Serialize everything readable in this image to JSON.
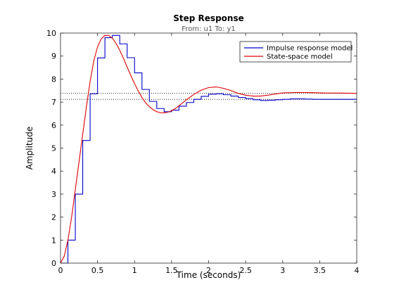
{
  "chart_data": {
    "type": "line",
    "title": "Step Response",
    "subtitle": "From: u1  To: y1",
    "xlabel": "Time (seconds)",
    "ylabel": "Amplitude",
    "xlim": [
      0,
      4
    ],
    "ylim": [
      0,
      10
    ],
    "xticks": [
      0,
      0.5,
      1,
      1.5,
      2,
      2.5,
      3,
      3.5,
      4
    ],
    "xtick_labels": [
      "0",
      "0.5",
      "1",
      "1.5",
      "2",
      "2.5",
      "3",
      "3.5",
      "4"
    ],
    "yticks": [
      0,
      1,
      2,
      3,
      4,
      5,
      6,
      7,
      8,
      9,
      10
    ],
    "ytick_labels": [
      "0",
      "1",
      "2",
      "3",
      "4",
      "5",
      "6",
      "7",
      "8",
      "9",
      "10"
    ],
    "grid": false,
    "legend_position": "top-right",
    "reference_lines": [
      {
        "y": 7.12,
        "style": "dotted"
      },
      {
        "y": 7.38,
        "style": "dotted"
      }
    ],
    "series": [
      {
        "name": "Impulse response model",
        "color": "#0000cc",
        "style": "stairs",
        "x": [
          0,
          0.1,
          0.2,
          0.3,
          0.4,
          0.5,
          0.6,
          0.7,
          0.8,
          0.9,
          1.0,
          1.1,
          1.2,
          1.3,
          1.4,
          1.5,
          1.6,
          1.7,
          1.8,
          1.9,
          2.0,
          2.1,
          2.2,
          2.3,
          2.4,
          2.5,
          2.6,
          2.7,
          2.8,
          2.9,
          3.0,
          3.1,
          3.2,
          3.3,
          3.4,
          3.5,
          3.6,
          3.7,
          3.8,
          3.9,
          4.0
        ],
        "y": [
          0,
          1.0,
          3.0,
          5.33,
          7.36,
          8.92,
          9.8,
          9.9,
          9.53,
          8.93,
          8.27,
          7.55,
          7.03,
          6.72,
          6.58,
          6.65,
          6.82,
          6.98,
          7.12,
          7.25,
          7.34,
          7.36,
          7.32,
          7.26,
          7.2,
          7.15,
          7.1,
          7.07,
          7.08,
          7.1,
          7.12,
          7.14,
          7.14,
          7.13,
          7.12,
          7.12,
          7.12,
          7.12,
          7.12,
          7.12,
          7.12
        ]
      },
      {
        "name": "State-space model",
        "color": "#dd0000",
        "style": "smooth",
        "x": [
          0,
          0.05,
          0.1,
          0.15,
          0.2,
          0.25,
          0.3,
          0.35,
          0.4,
          0.45,
          0.5,
          0.55,
          0.6,
          0.65,
          0.7,
          0.75,
          0.8,
          0.85,
          0.9,
          0.95,
          1.0,
          1.05,
          1.1,
          1.15,
          1.2,
          1.25,
          1.3,
          1.35,
          1.4,
          1.45,
          1.5,
          1.55,
          1.6,
          1.65,
          1.7,
          1.8,
          1.9,
          2.0,
          2.1,
          2.2,
          2.3,
          2.4,
          2.5,
          2.6,
          2.7,
          2.8,
          2.9,
          3.0,
          3.2,
          3.4,
          3.6,
          3.8,
          4.0
        ],
        "y": [
          0,
          0.3,
          1.0,
          2.0,
          3.2,
          4.4,
          5.6,
          6.8,
          7.9,
          8.8,
          9.4,
          9.75,
          9.9,
          9.9,
          9.78,
          9.55,
          9.25,
          8.9,
          8.52,
          8.15,
          7.8,
          7.48,
          7.2,
          6.97,
          6.8,
          6.67,
          6.58,
          6.54,
          6.53,
          6.56,
          6.62,
          6.72,
          6.84,
          6.97,
          7.1,
          7.33,
          7.52,
          7.63,
          7.66,
          7.6,
          7.5,
          7.38,
          7.3,
          7.26,
          7.26,
          7.3,
          7.35,
          7.4,
          7.42,
          7.41,
          7.39,
          7.39,
          7.38
        ]
      }
    ]
  }
}
